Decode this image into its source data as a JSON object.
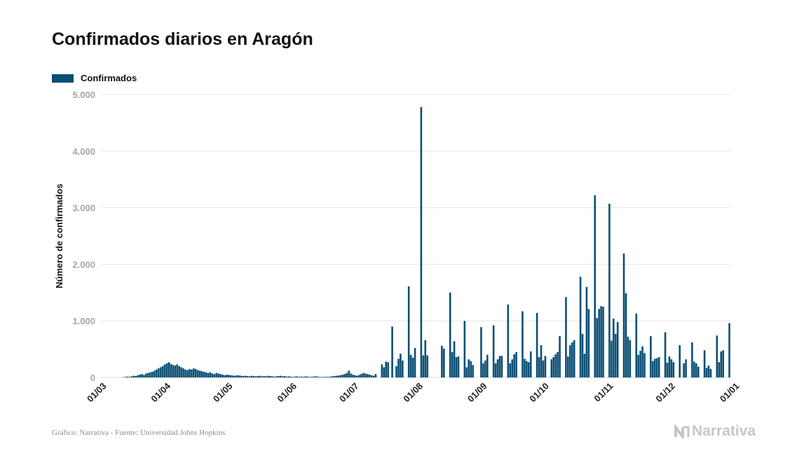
{
  "title": "Confirmados diarios en Aragón",
  "legend": {
    "label": "Confirmados"
  },
  "footer": "Gráfico: Narrativa - Fuente: Universidad Johns Hopkins",
  "brand": {
    "name": "Narrativa",
    "icon": "narrativa-logo-icon"
  },
  "colors": {
    "bar": "#0b4f74",
    "grid": "#e6e6e6",
    "tick": "#a6a6a6"
  },
  "chart_data": {
    "type": "bar",
    "title": "Confirmados diarios en Aragón",
    "ylabel": "Número de confirmados",
    "xlabel": "",
    "ylim": [
      0,
      5000
    ],
    "yticks": [
      0,
      1000,
      2000,
      3000,
      4000,
      5000
    ],
    "ytick_labels": [
      "0",
      "1.000",
      "2.000",
      "3.000",
      "4.000",
      "5.000"
    ],
    "xtick_labels": [
      "01/03",
      "01/04",
      "01/05",
      "01/06",
      "01/07",
      "01/08",
      "01/09",
      "01/10",
      "01/11",
      "01/12",
      "01/01"
    ],
    "xtick_day_index": [
      0,
      31,
      61,
      92,
      122,
      153,
      184,
      214,
      245,
      275,
      306
    ],
    "grid": true,
    "legend_position": "top-left",
    "series": [
      {
        "name": "Confirmados",
        "start_date": "01/03",
        "values": [
          0,
          0,
          0,
          0,
          0,
          0,
          0,
          0,
          0,
          0,
          5,
          10,
          15,
          10,
          20,
          30,
          25,
          40,
          50,
          60,
          45,
          70,
          80,
          90,
          100,
          120,
          140,
          160,
          180,
          200,
          230,
          250,
          270,
          240,
          220,
          210,
          230,
          200,
          180,
          160,
          140,
          130,
          150,
          140,
          160,
          150,
          130,
          120,
          110,
          100,
          90,
          80,
          90,
          70,
          60,
          80,
          70,
          60,
          50,
          40,
          50,
          45,
          40,
          35,
          30,
          40,
          35,
          30,
          25,
          30,
          25,
          20,
          30,
          25,
          20,
          25,
          30,
          20,
          25,
          20,
          30,
          25,
          20,
          15,
          20,
          25,
          30,
          20,
          25,
          15,
          20,
          15,
          10,
          15,
          20,
          10,
          15,
          12,
          18,
          15,
          10,
          12,
          15,
          20,
          15,
          10,
          8,
          10,
          12,
          10,
          15,
          20,
          25,
          30,
          35,
          40,
          50,
          60,
          80,
          120,
          70,
          50,
          40,
          30,
          45,
          60,
          80,
          70,
          60,
          50,
          40,
          30,
          60,
          0,
          0,
          230,
          180,
          280,
          270,
          0,
          900,
          0,
          200,
          330,
          420,
          300,
          0,
          0,
          1610,
          400,
          350,
          520,
          0,
          0,
          4780,
          390,
          660,
          390,
          0,
          0,
          0,
          0,
          0,
          0,
          560,
          510,
          0,
          0,
          1500,
          450,
          640,
          360,
          370,
          0,
          0,
          1000,
          180,
          320,
          290,
          220,
          0,
          0,
          0,
          890,
          250,
          300,
          400,
          0,
          0,
          920,
          250,
          320,
          380,
          380,
          0,
          0,
          1290,
          250,
          320,
          410,
          450,
          0,
          0,
          1170,
          330,
          290,
          270,
          460,
          0,
          0,
          1140,
          360,
          570,
          300,
          380,
          0,
          0,
          320,
          360,
          410,
          450,
          730,
          0,
          0,
          1420,
          370,
          570,
          620,
          660,
          0,
          0,
          1780,
          770,
          420,
          1600,
          1210,
          0,
          0,
          3220,
          1050,
          1210,
          1260,
          1250,
          0,
          0,
          3070,
          650,
          1040,
          770,
          980,
          0,
          0,
          2190,
          1490,
          720,
          660,
          0,
          0,
          1130,
          400,
          470,
          550,
          430,
          0,
          0,
          730,
          290,
          330,
          340,
          360,
          0,
          0,
          800,
          260,
          370,
          320,
          270,
          0,
          0,
          570,
          0,
          250,
          320,
          0,
          0,
          620,
          280,
          250,
          190,
          0,
          0,
          480,
          170,
          210,
          150,
          0,
          0,
          740,
          270,
          460,
          480,
          0,
          0,
          960
        ]
      }
    ]
  }
}
